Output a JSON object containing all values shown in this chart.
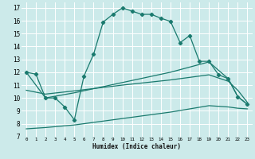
{
  "title": "",
  "xlabel": "Humidex (Indice chaleur)",
  "bg_color": "#cceaea",
  "grid_color": "#ffffff",
  "line_color": "#1a7a6e",
  "xlim": [
    -0.5,
    23.5
  ],
  "ylim": [
    7,
    17.4
  ],
  "xticks": [
    0,
    1,
    2,
    3,
    4,
    5,
    6,
    7,
    8,
    9,
    10,
    11,
    12,
    13,
    14,
    15,
    16,
    17,
    18,
    19,
    20,
    21,
    22,
    23
  ],
  "yticks": [
    7,
    8,
    9,
    10,
    11,
    12,
    13,
    14,
    15,
    16,
    17
  ],
  "line1_x": [
    0,
    1,
    2,
    3,
    4,
    5,
    6,
    7,
    8,
    9,
    10,
    11,
    12,
    13,
    14,
    15,
    16,
    17,
    18,
    19,
    20,
    21,
    22,
    23
  ],
  "line1_y": [
    12,
    11.85,
    10.0,
    10.0,
    9.3,
    8.3,
    11.7,
    13.4,
    15.9,
    16.5,
    17.0,
    16.75,
    16.5,
    16.5,
    16.2,
    15.95,
    14.3,
    14.85,
    12.85,
    12.85,
    11.8,
    11.5,
    10.1,
    9.5
  ],
  "line2_x": [
    0,
    2,
    5,
    10,
    15,
    19,
    21,
    22,
    23
  ],
  "line2_y": [
    12.0,
    10.0,
    10.4,
    11.2,
    12.0,
    12.8,
    11.5,
    10.1,
    9.5
  ],
  "line3_x": [
    0,
    2,
    5,
    10,
    15,
    19,
    21,
    22,
    23
  ],
  "line3_y": [
    10.6,
    10.3,
    10.55,
    11.0,
    11.4,
    11.8,
    11.3,
    10.6,
    9.65
  ],
  "line4_x": [
    0,
    2,
    5,
    10,
    15,
    19,
    21,
    22,
    23
  ],
  "line4_y": [
    7.6,
    7.7,
    7.9,
    8.4,
    8.9,
    9.4,
    9.3,
    9.2,
    9.15
  ]
}
